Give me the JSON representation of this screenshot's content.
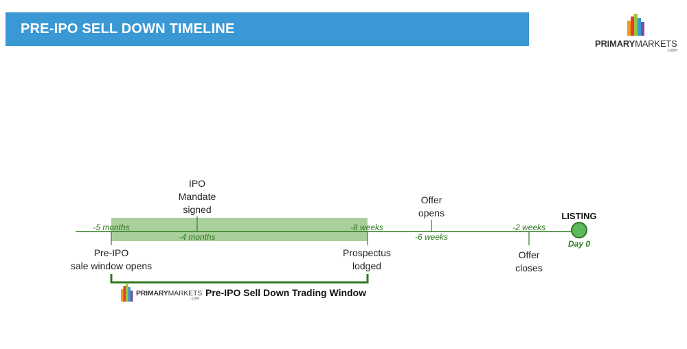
{
  "header": {
    "title": "PRE-IPO SELL DOWN TIMELINE"
  },
  "logo": {
    "brand_bold": "PRIMARY",
    "brand_light": "MARKETS",
    "suffix": ".com"
  },
  "timeline": {
    "events_above": [
      {
        "id": "ipo-mandate",
        "label_lines": [
          "IPO",
          "Mandate",
          "signed"
        ]
      },
      {
        "id": "offer-opens",
        "label_lines": [
          "Offer",
          "opens"
        ]
      }
    ],
    "events_below": [
      {
        "id": "pre-ipo-window",
        "label_lines": [
          "Pre-IPO",
          "sale window opens"
        ]
      },
      {
        "id": "prospectus",
        "label_lines": [
          "Prospectus",
          "lodged"
        ]
      },
      {
        "id": "offer-closes",
        "label_lines": [
          "Offer",
          "closes"
        ]
      }
    ],
    "time_labels": {
      "minus_5_months": "-5 months",
      "minus_4_months": "-4 months",
      "minus_8_weeks": "-8 weeks",
      "minus_6_weeks": "-6 weeks",
      "minus_2_weeks": "-2 weeks"
    },
    "listing": {
      "label": "LISTING",
      "day": "Day 0"
    },
    "trading_window": {
      "label": "Pre-IPO Sell Down Trading Window"
    }
  },
  "colors": {
    "banner": "#3a98d4",
    "timeline_green": "#2e7a1f",
    "window_fill": "#a9cf9c",
    "listing_fill": "#5cb85c"
  }
}
